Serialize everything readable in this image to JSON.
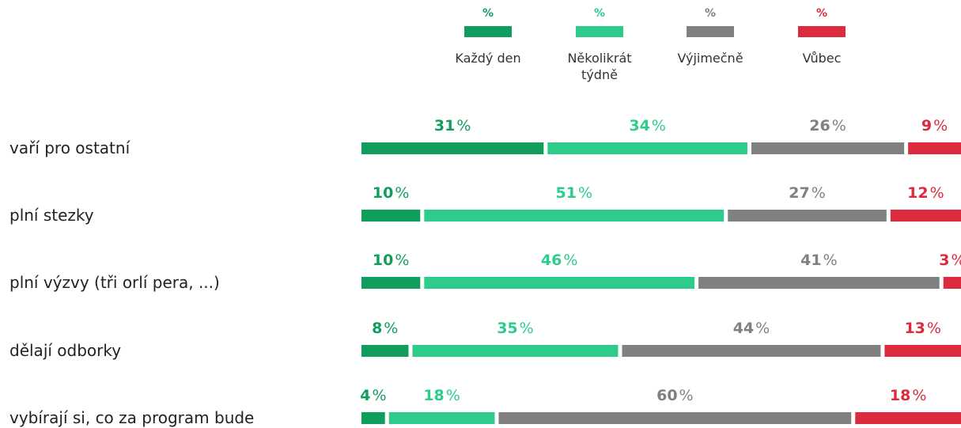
{
  "chart_data": {
    "type": "bar",
    "stacked": true,
    "orientation": "horizontal",
    "normalized_to_100": true,
    "unit": "%",
    "categories": [
      "vaří pro ostatní",
      "plní stezky",
      "plní výzvy (tři orlí pera, ...)",
      "dělají odborky",
      "vybírají si, co za program bude"
    ],
    "series": [
      {
        "name": "Každý den",
        "color": "#0f9e5e",
        "values": [
          31,
          10,
          10,
          8,
          4
        ]
      },
      {
        "name": "Několikrát týdně",
        "color": "#2ecc8a",
        "values": [
          34,
          51,
          46,
          35,
          18
        ]
      },
      {
        "name": "Výjimečně",
        "color": "#808080",
        "values": [
          26,
          27,
          41,
          44,
          60
        ]
      },
      {
        "name": "Vůbec",
        "color": "#dc2b3e",
        "values": [
          9,
          12,
          3,
          13,
          18
        ]
      }
    ],
    "legend": {
      "position": "top",
      "header_symbol": "%"
    },
    "grid": false
  }
}
